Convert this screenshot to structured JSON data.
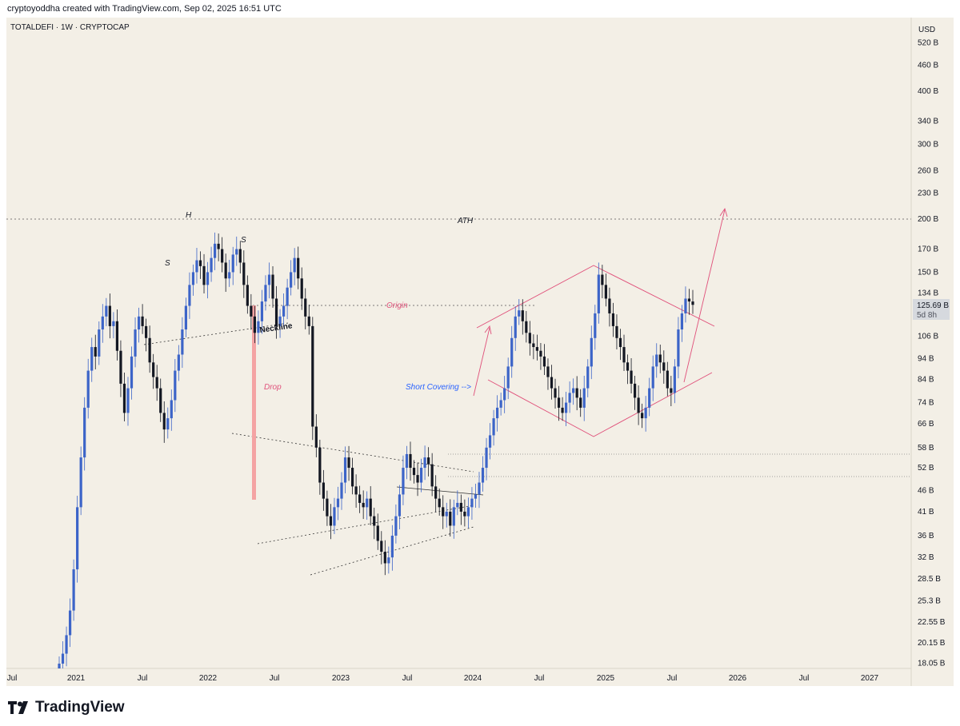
{
  "header": {
    "credit": "cryptoyoddha created with TradingView.com, Sep 02, 2025 16:51 UTC"
  },
  "symbol": "TOTALDEFI · 1W · CRYPTOCAP",
  "footer": {
    "brand": "TradingView",
    "logo_icon": "tradingview-logo-icon"
  },
  "colors": {
    "up": "#3c64c8",
    "down": "#131722",
    "pattern": "#e0507a",
    "drop_bar": "#f4a3a3",
    "background": "#f3efe6"
  },
  "chart_data": {
    "type": "candlestick",
    "yscale": "log",
    "currency_label": "USD",
    "y_ticks": [
      "520 B",
      "460 B",
      "400 B",
      "340 B",
      "300 B",
      "260 B",
      "230 B",
      "200 B",
      "170 B",
      "150 B",
      "134 B",
      "106 B",
      "94 B",
      "84 B",
      "74 B",
      "66 B",
      "58 B",
      "52 B",
      "46 B",
      "41 B",
      "36 B",
      "32 B",
      "28.5 B",
      "25.3 B",
      "22.55 B",
      "20.15 B",
      "18.05 B"
    ],
    "x_ticks": [
      "Jul",
      "2021",
      "Jul",
      "2022",
      "Jul",
      "2023",
      "Jul",
      "2024",
      "Jul",
      "2025",
      "Jul",
      "2026",
      "Jul",
      "2027"
    ],
    "price_label": {
      "value": "125.69 B",
      "countdown": "5d 8h"
    },
    "annotations": {
      "ath": "ATH",
      "head": "H",
      "left_shoulder": "S",
      "right_shoulder": "S",
      "neckline": "Neckline",
      "drop": "Drop",
      "origin": "Origin",
      "short_covering": "Short Covering -->"
    },
    "closes": [
      18,
      19,
      21,
      24,
      30,
      42,
      55,
      72,
      88,
      100,
      95,
      110,
      118,
      125,
      112,
      115,
      98,
      82,
      70,
      80,
      95,
      110,
      118,
      112,
      105,
      92,
      85,
      80,
      70,
      64,
      68,
      75,
      88,
      96,
      110,
      125,
      140,
      150,
      160,
      155,
      140,
      150,
      162,
      175,
      170,
      158,
      145,
      150,
      165,
      170,
      158,
      140,
      125,
      118,
      108,
      115,
      128,
      140,
      148,
      130,
      112,
      118,
      125,
      138,
      150,
      162,
      145,
      130,
      118,
      112,
      65,
      58,
      48,
      44,
      40,
      38,
      42,
      44,
      48,
      55,
      52,
      47,
      45,
      43,
      42,
      44,
      40,
      38,
      35,
      33,
      31,
      32,
      36,
      40,
      45,
      52,
      56,
      52,
      50,
      48,
      52,
      55,
      53,
      47,
      44,
      42,
      40,
      41,
      38,
      42,
      43,
      41,
      40,
      42,
      44,
      45,
      48,
      52,
      58,
      62,
      68,
      72,
      75,
      80,
      90,
      105,
      118,
      122,
      115,
      108,
      102,
      100,
      98,
      95,
      90,
      85,
      80,
      76,
      72,
      70,
      74,
      78,
      80,
      76,
      72,
      80,
      90,
      105,
      120,
      148,
      140,
      130,
      120,
      112,
      105,
      100,
      92,
      88,
      82,
      76,
      70,
      68,
      72,
      80,
      90,
      96,
      92,
      88,
      80,
      78,
      90,
      110,
      120,
      130,
      128,
      125.69
    ]
  }
}
